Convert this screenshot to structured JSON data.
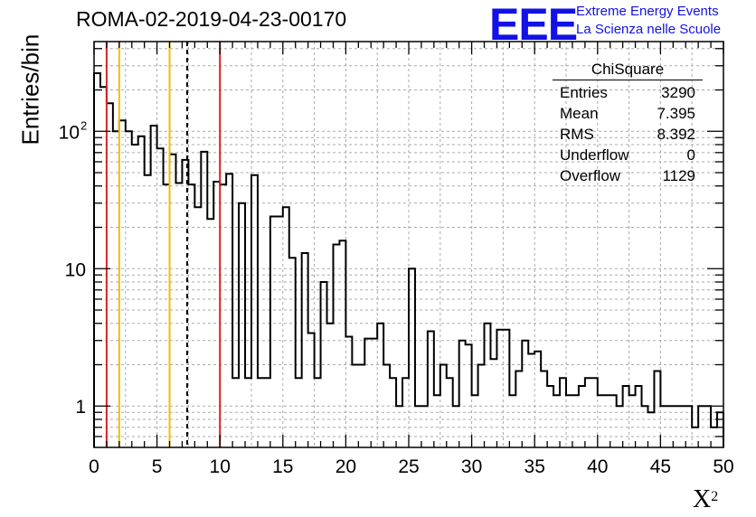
{
  "title": "ROMA-02-2019-04-23-00170",
  "logo": {
    "mark": "EEE",
    "line1": "Extreme Energy Events",
    "line2": "La Scienza nelle Scuole",
    "color": "#1212e6"
  },
  "stats": {
    "title": "ChiSquare",
    "rows": [
      {
        "label": "Entries",
        "value": "3290"
      },
      {
        "label": "Mean",
        "value": "7.395"
      },
      {
        "label": "RMS",
        "value": "8.392"
      },
      {
        "label": "Underflow",
        "value": "0"
      },
      {
        "label": "Overflow",
        "value": "1129"
      }
    ]
  },
  "chart_data": {
    "type": "bar",
    "title": "ROMA-02-2019-04-23-00170",
    "xlabel": "X",
    "xlabel_sup": "2",
    "ylabel": "Entries/bin",
    "xlim": [
      0,
      50
    ],
    "ylim": [
      0.5,
      450
    ],
    "yscale": "log",
    "grid": true,
    "bin_width": 0.5,
    "x_ticks": [
      0,
      5,
      10,
      15,
      20,
      25,
      30,
      35,
      40,
      45,
      50
    ],
    "y_ticks": [
      {
        "value": 1,
        "label": "1"
      },
      {
        "value": 10,
        "label": "10"
      },
      {
        "value": 100,
        "label": "10",
        "sup": "2"
      }
    ],
    "values": [
      265,
      210,
      160,
      100,
      120,
      100,
      80,
      92,
      48,
      110,
      75,
      41,
      68,
      42,
      62,
      41,
      28,
      71,
      23,
      43,
      41,
      49,
      1.6,
      30,
      1.6,
      48,
      1.6,
      1.6,
      24,
      24,
      28,
      12,
      1.6,
      13,
      3.4,
      1.6,
      8,
      4,
      15,
      16,
      3.2,
      2,
      2,
      3.1,
      3.1,
      4,
      2,
      1.6,
      1,
      1.6,
      10,
      1,
      1,
      3.5,
      1.2,
      2,
      1.6,
      1,
      3,
      2.8,
      1.2,
      2,
      4,
      2.2,
      3.6,
      3.6,
      1.2,
      1.8,
      3,
      2.4,
      2.5,
      1.8,
      1.4,
      1.2,
      1.6,
      1.2,
      1.2,
      1.4,
      1.6,
      1.6,
      1.2,
      1.2,
      1.2,
      1,
      1.4,
      1.2,
      1.4,
      1,
      0.9,
      1.8,
      1,
      1,
      1,
      1,
      1,
      0.7,
      1,
      1,
      0.7,
      0.9
    ],
    "vlines": [
      {
        "x": 1,
        "color": "#dd2222",
        "style": "solid"
      },
      {
        "x": 2,
        "color": "#f0c000",
        "style": "solid"
      },
      {
        "x": 6,
        "color": "#f0c000",
        "style": "solid"
      },
      {
        "x": 7.395,
        "color": "#000000",
        "style": "dashed"
      },
      {
        "x": 10,
        "color": "#dd2222",
        "style": "solid"
      }
    ]
  }
}
